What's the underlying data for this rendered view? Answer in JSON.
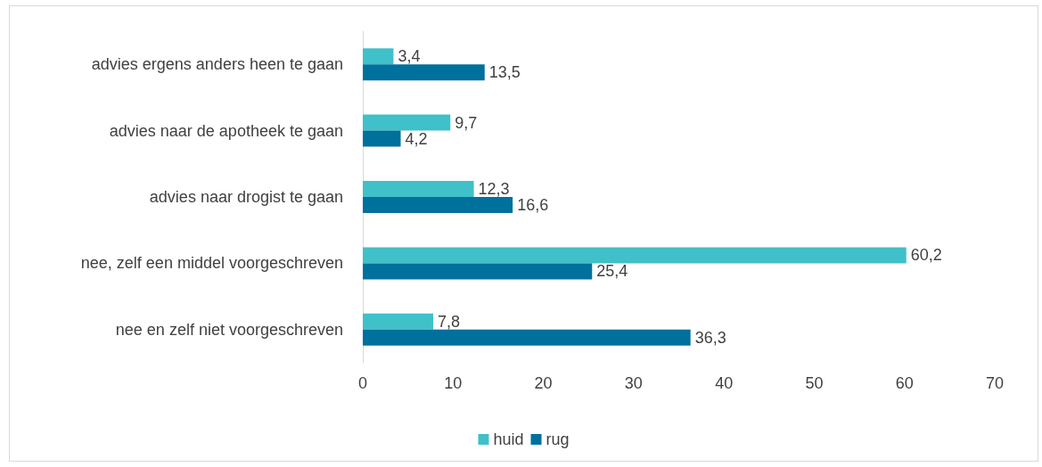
{
  "chart_data": {
    "type": "bar",
    "orientation": "horizontal",
    "categories": [
      "advies ergens anders heen te gaan",
      "advies naar de apotheek te gaan",
      "advies naar drogist te gaan",
      "nee, zelf een middel voorgeschreven",
      "nee en zelf niet voorgeschreven"
    ],
    "series": [
      {
        "name": "huid",
        "color": "#40c0c8",
        "values": [
          3.4,
          9.7,
          12.3,
          60.2,
          7.8
        ],
        "value_labels": [
          "3,4",
          "9,7",
          "12,3",
          "60,2",
          "7,8"
        ]
      },
      {
        "name": "rug",
        "color": "#00709c",
        "values": [
          13.5,
          4.2,
          16.6,
          25.4,
          36.3
        ],
        "value_labels": [
          "13,5",
          "4,2",
          "16,6",
          "25,4",
          "36,3"
        ]
      }
    ],
    "xlim": [
      0,
      70
    ],
    "xticks": [
      0,
      10,
      20,
      30,
      40,
      50,
      60,
      70
    ],
    "grid": false,
    "legend": "bottom"
  }
}
